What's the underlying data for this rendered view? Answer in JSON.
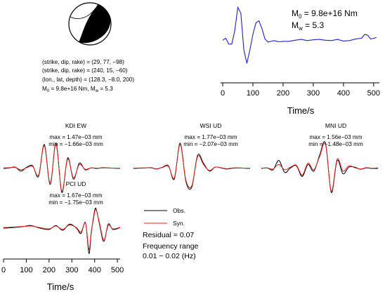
{
  "mechanism": {
    "lines": [
      "(strike, dip, rake) = (29, 77, −98)",
      "(strike, dip, rake) = (240, 15, −60)",
      "(lon., lat, depth) = (128.3, −8.0, 200)"
    ],
    "m0_line_prefix": "M",
    "m0_line_sub0": "0",
    "m0_line_mid": " = 9.8e+16 Nm, M",
    "m0_line_subw": "w",
    "m0_line_end": " = 5.3"
  },
  "stf_panel": {
    "m0_label": "M",
    "m0_sub": "0",
    "m0_value": " =  9.8e+16 Nm",
    "mw_label": "M",
    "mw_sub": "w",
    "mw_value": " = 5.3",
    "xlabel": "Time/s"
  },
  "legend": {
    "obs_label": "Obs.",
    "syn_label": "Syn.",
    "residual": "Residual = 0.07",
    "freq_label": "Frequency range",
    "freq_range": "0.01 − 0.02 (Hz)"
  },
  "stations": [
    {
      "name": "KDI EW",
      "max": "max = 1.47e−03 mm",
      "min": "min = −1.66e−03 mm"
    },
    {
      "name": "WSI UD",
      "max": "max = 1.77e−03 mm",
      "min": "min = −2.07e−03 mm"
    },
    {
      "name": "MNI UD",
      "max": "max = 1.56e−03 mm",
      "min": "min = −1.48e−03 mm"
    },
    {
      "name": "PCI UD",
      "max": "max = 1.67e−03 mm",
      "min": "min = −1.75e−03 mm"
    }
  ],
  "waveform_axis": {
    "xlabel": "Time/s"
  },
  "colors": {
    "obs": "#000000",
    "syn": "#e02020",
    "stf": "#2020c8"
  },
  "chart_data": [
    {
      "type": "line",
      "xlabel": "Time/s",
      "ylabel": "",
      "xlim": [
        0,
        512
      ],
      "xticks": [
        0,
        100,
        200,
        300,
        400,
        500
      ],
      "series": [
        {
          "x": [
            0,
            10,
            20,
            30,
            40,
            50,
            60,
            70,
            80,
            90,
            100,
            110,
            120,
            130,
            140,
            150,
            160,
            170,
            180,
            190,
            200,
            220,
            240,
            260,
            280,
            300,
            320,
            340,
            360,
            380,
            400,
            420,
            440,
            460,
            470,
            480,
            490,
            500,
            510
          ],
          "values": [
            0.05,
            0.1,
            -0.05,
            -0.05,
            0.3,
            0.9,
            0.75,
            -0.2,
            -0.55,
            -0.2,
            0.2,
            0.5,
            0.55,
            0.35,
            0.08,
            0.0,
            0.02,
            0.04,
            0.02,
            0.01,
            0.02,
            0.02,
            0.05,
            0.07,
            0.04,
            0.06,
            0.07,
            0.05,
            0.04,
            0.07,
            0.03,
            0.04,
            0.08,
            0.1,
            0.2,
            0.18,
            0.08,
            0.1,
            0.12
          ]
        }
      ]
    },
    {
      "type": "line",
      "xlabel": "Time/s",
      "xlim": [
        0,
        512
      ],
      "xticks": [
        0,
        100,
        200,
        300,
        400,
        500
      ],
      "station": "PCI UD",
      "series": [
        {
          "name": "Obs.",
          "x": [
            0,
            40,
            80,
            120,
            160,
            200,
            230,
            260,
            290,
            320,
            340,
            360,
            375,
            385,
            395,
            405,
            420,
            440,
            460,
            480,
            512
          ],
          "values": [
            0.0,
            0.02,
            0.05,
            0.1,
            0.0,
            -0.05,
            0.1,
            -0.08,
            0.15,
            0.0,
            -0.2,
            0.2,
            -0.95,
            -0.2,
            0.4,
            0.75,
            0.2,
            -0.5,
            0.15,
            -0.05,
            0.02
          ]
        },
        {
          "name": "Syn.",
          "x": [
            0,
            40,
            80,
            120,
            160,
            200,
            230,
            260,
            290,
            320,
            340,
            360,
            375,
            385,
            395,
            405,
            420,
            440,
            460,
            480,
            512
          ],
          "values": [
            0.02,
            0.04,
            0.06,
            0.08,
            0.02,
            -0.03,
            0.08,
            -0.05,
            0.12,
            0.02,
            -0.15,
            0.18,
            -0.8,
            -0.15,
            0.35,
            0.7,
            0.25,
            -0.45,
            0.1,
            -0.03,
            0.03
          ]
        }
      ]
    }
  ]
}
